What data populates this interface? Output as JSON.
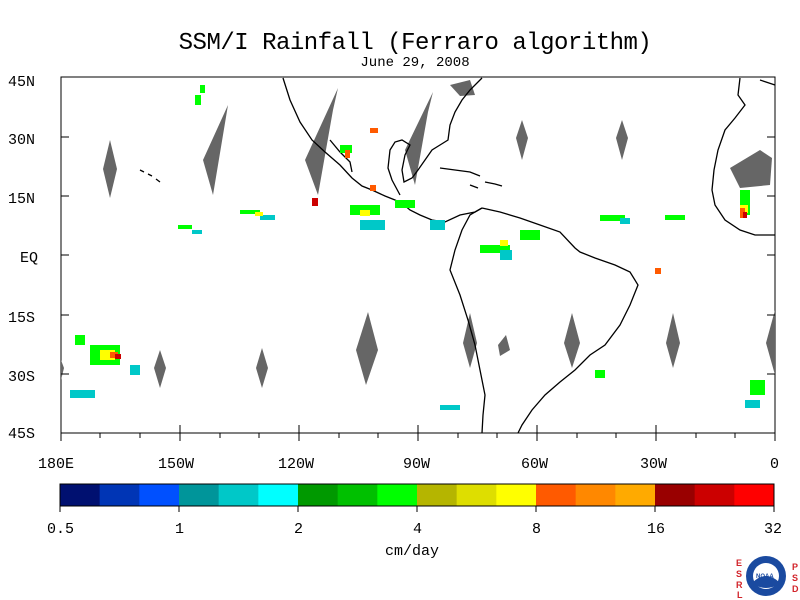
{
  "map": {
    "title": "SSM/I Rainfall (Ferraro algorithm)",
    "date": "June 29, 2008",
    "lat_labels": [
      "45N",
      "30N",
      "15N",
      "EQ",
      "15S",
      "30S",
      "45S"
    ],
    "lon_labels": [
      "180E",
      "150W",
      "120W",
      "90W",
      "60W",
      "30W",
      "0"
    ]
  },
  "colorbar": {
    "unit_label": "cm/day",
    "tick_labels": [
      "0.5",
      "1",
      "2",
      "4",
      "8",
      "16",
      "32"
    ],
    "colors": [
      "#001070",
      "#0035b5",
      "#0050ff",
      "#00959a",
      "#00c8c8",
      "#00ffff",
      "#009900",
      "#00c000",
      "#00ff00",
      "#b5b500",
      "#dede00",
      "#ffff00",
      "#ff5a00",
      "#ff8800",
      "#ffaa00",
      "#990000",
      "#cc0000",
      "#ff0000"
    ]
  },
  "logo": {
    "left_letters": [
      "E",
      "S",
      "R",
      "L"
    ],
    "right_letters": [
      "P",
      "S",
      "D"
    ],
    "center_text": "NOAA"
  },
  "colors": {
    "land_outline": "#000000",
    "no_data": "#666666",
    "frame": "#000000"
  }
}
